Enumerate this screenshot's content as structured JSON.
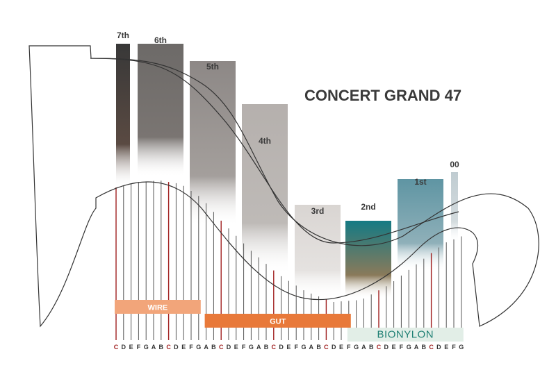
{
  "title": "CONCERT GRAND 47",
  "octaves": [
    {
      "label": "7th",
      "strings": 2,
      "c1": "#383838",
      "c2": "#5a4a42"
    },
    {
      "label": "6th",
      "strings": 7,
      "c1": "#6d6a68",
      "c2": "#7a7572"
    },
    {
      "label": "5th",
      "strings": 7,
      "c1": "#8d8886",
      "c2": "#a49f9c"
    },
    {
      "label": "4th",
      "strings": 7,
      "c1": "#b5b0ad",
      "c2": "#bebab7"
    },
    {
      "label": "3rd",
      "strings": 7,
      "c1": "#d9d5d2",
      "c2": "#e5e2e0"
    },
    {
      "label": "2nd",
      "strings": 7,
      "c1": "#147a84",
      "c2": "#8a7a5a"
    },
    {
      "label": "1st",
      "strings": 7,
      "c1": "#5f95a3",
      "c2": "#8fb0b9"
    },
    {
      "label": "00",
      "strings": 3,
      "c1": "#c0ccd1",
      "c2": "#d3dbde"
    }
  ],
  "notes": [
    "C",
    "D",
    "E",
    "F",
    "G",
    "A",
    "B",
    "C",
    "D",
    "E",
    "F",
    "G",
    "A",
    "B",
    "C",
    "D",
    "E",
    "F",
    "G",
    "A",
    "B",
    "C",
    "D",
    "E",
    "F",
    "G",
    "A",
    "B",
    "C",
    "D",
    "E",
    "F",
    "G",
    "A",
    "B",
    "C",
    "D",
    "E",
    "F",
    "G",
    "A",
    "B",
    "C",
    "D",
    "E",
    "F",
    "G"
  ],
  "bands": [
    {
      "label": "WIRE",
      "color": "#f2a57a",
      "from": 0,
      "to": 11
    },
    {
      "label": "GUT",
      "color": "#e8793a",
      "from": 12,
      "to": 31
    },
    {
      "label": "BIONYLON",
      "color": "#e2eee7",
      "from": 31,
      "to": 46
    }
  ],
  "colors": {
    "c_string": "#a02020",
    "string": "#555555",
    "outline": "#333333"
  }
}
